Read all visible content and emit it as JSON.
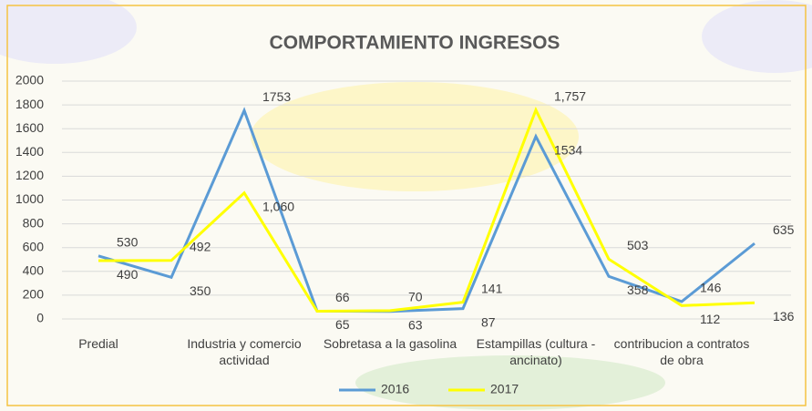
{
  "chart_data": {
    "type": "line",
    "title": "COMPORTAMIENTO INGRESOS",
    "categories": [
      "Predial",
      null,
      "Industria y comercio actividad",
      null,
      "Sobretasa a la gasolina",
      null,
      "Estampillas (cultura - ancinato)",
      null,
      "contribucion a contratos de obra",
      null
    ],
    "series": [
      {
        "name": "2016",
        "color": "#5b9bd5",
        "values": [
          530,
          350,
          1753,
          66,
          63,
          87,
          1534,
          358,
          146,
          635
        ]
      },
      {
        "name": "2017",
        "color": "#ffff00",
        "values": [
          490,
          492,
          1060,
          65,
          70,
          141,
          1757,
          503,
          112,
          136
        ],
        "value_labels": [
          "490",
          "492",
          "1,060",
          "65",
          "70",
          "141",
          "1,757",
          "503",
          "112",
          "136"
        ]
      }
    ],
    "ylim": [
      0,
      2000
    ],
    "yticks": [
      0,
      200,
      400,
      600,
      800,
      1000,
      1200,
      1400,
      1600,
      1800,
      2000
    ],
    "grid": true,
    "legend": "bottom"
  }
}
